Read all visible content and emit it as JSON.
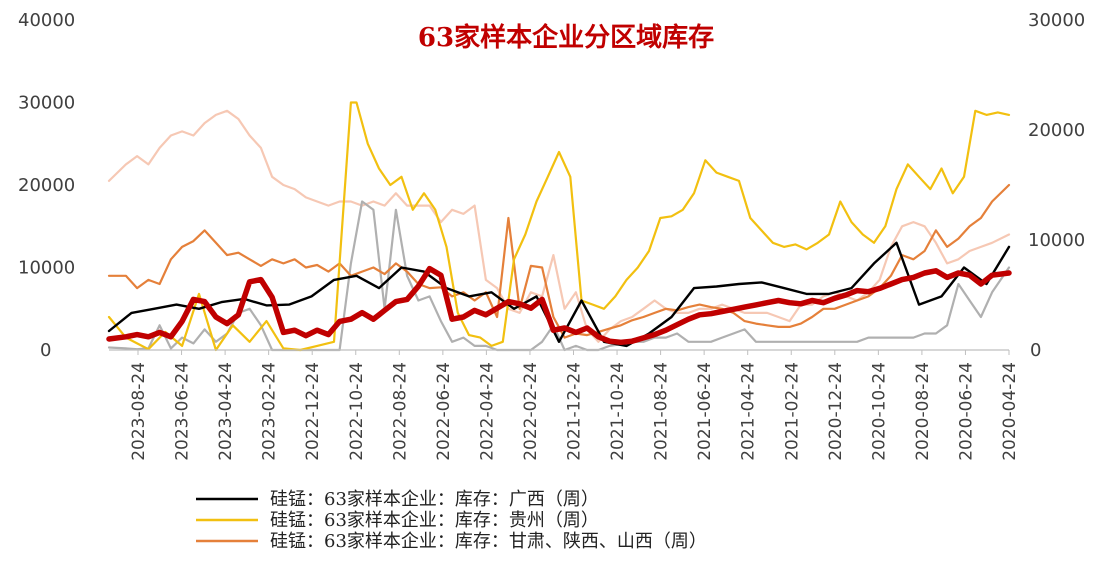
{
  "chart_data": {
    "type": "line",
    "title": "63家样本企业分区域库存",
    "y_left": {
      "ticks": [
        "0",
        "10000",
        "20000",
        "30000",
        "40000"
      ],
      "lim": [
        0,
        40000
      ]
    },
    "y_right": {
      "ticks": [
        "0",
        "10000",
        "20000",
        "30000"
      ],
      "lim": [
        0,
        30000
      ]
    },
    "x_ticks": [
      "2023-08-24",
      "2023-06-24",
      "2023-04-24",
      "2023-02-24",
      "2022-12-24",
      "2022-10-24",
      "2022-08-24",
      "2022-06-24",
      "2022-04-24",
      "2022-02-24",
      "2021-12-24",
      "2021-10-24",
      "2021-08-24",
      "2021-06-24",
      "2021-04-24",
      "2021-02-24",
      "2020-12-24",
      "2020-10-24",
      "2020-08-24",
      "2020-06-24",
      "2020-04-24"
    ],
    "x_order": "descending (left = 2023-08-24, right = 2020-04-24), weekly",
    "grid": false,
    "legend_position": "bottom",
    "series": [
      {
        "name": "硅锰：63家样本企业：库存：广西（周）",
        "color": "#000000",
        "axis": "left",
        "x": [
          0,
          4,
          8,
          12,
          16,
          20,
          24,
          28,
          32,
          36,
          40,
          44,
          48,
          52,
          56,
          60,
          64,
          68,
          72,
          76,
          80,
          84,
          88,
          92,
          96,
          100,
          104,
          108,
          112,
          116,
          120,
          124,
          128,
          132,
          136,
          140,
          144,
          148,
          152,
          156,
          160
        ],
        "values": [
          2300,
          4500,
          5000,
          5500,
          5000,
          5800,
          6200,
          5400,
          5500,
          6500,
          8500,
          9000,
          7500,
          10000,
          9500,
          7500,
          6500,
          7000,
          5000,
          6500,
          1000,
          6000,
          1000,
          500,
          2000,
          4000,
          7500,
          7700,
          8000,
          8200,
          7500,
          6800,
          6800,
          7500,
          10500,
          13000,
          5500,
          6500,
          10000,
          8000,
          12500
        ]
      },
      {
        "name": "硅锰：63家样本企业：库存：贵州（周）",
        "color": "#f2c010",
        "axis": "left",
        "x": [
          0,
          3,
          5,
          7,
          10,
          13,
          16,
          19,
          22,
          25,
          28,
          31,
          34,
          37,
          40,
          43,
          44,
          46,
          48,
          50,
          52,
          54,
          56,
          58,
          60,
          62,
          64,
          66,
          68,
          70,
          72,
          74,
          76,
          78,
          80,
          82,
          84,
          86,
          88,
          90,
          92,
          94,
          96,
          98,
          100,
          102,
          104,
          106,
          108,
          110,
          112,
          114,
          116,
          118,
          120,
          122,
          124,
          126,
          128,
          130,
          132,
          134,
          136,
          138,
          140,
          142,
          144,
          146,
          148,
          150,
          152,
          154,
          156,
          158,
          160
        ],
        "values": [
          4000,
          1500,
          800,
          100,
          2200,
          500,
          6800,
          0,
          3000,
          1000,
          3500,
          200,
          0,
          500,
          1000,
          30000,
          30000,
          25000,
          22000,
          20000,
          21000,
          17000,
          19000,
          17000,
          12500,
          4500,
          1800,
          1500,
          500,
          1000,
          11000,
          14000,
          18000,
          21000,
          24000,
          21000,
          6000,
          5500,
          5000,
          6500,
          8500,
          10000,
          12000,
          16000,
          16200,
          17000,
          19000,
          23000,
          21500,
          21000,
          20500,
          16000,
          14500,
          13000,
          12500,
          12800,
          12200,
          13000,
          14000,
          18000,
          15500,
          14000,
          13000,
          15000,
          19500,
          22500,
          21000,
          19500,
          22000,
          19000,
          21000,
          29000,
          28500,
          28800,
          28500
        ]
      },
      {
        "name": "硅锰：63家样本企业：库存：甘肃、陕西、山西（周）",
        "color": "#e5803a",
        "axis": "left",
        "x": [
          0,
          3,
          5,
          7,
          9,
          11,
          13,
          15,
          17,
          19,
          21,
          23,
          25,
          27,
          29,
          31,
          33,
          35,
          37,
          39,
          41,
          43,
          45,
          47,
          49,
          51,
          53,
          55,
          57,
          59,
          61,
          63,
          65,
          67,
          69,
          71,
          73,
          75,
          77,
          79,
          81,
          83,
          85,
          87,
          89,
          91,
          93,
          95,
          97,
          99,
          101,
          103,
          105,
          107,
          109,
          111,
          113,
          115,
          117,
          119,
          121,
          123,
          125,
          127,
          129,
          131,
          133,
          135,
          137,
          139,
          141,
          143,
          145,
          147,
          149,
          151,
          153,
          155,
          157,
          160
        ],
        "values": [
          9000,
          9000,
          7500,
          8500,
          8000,
          11000,
          12500,
          13200,
          14500,
          13000,
          11500,
          11800,
          11000,
          10200,
          11000,
          10500,
          11000,
          10000,
          10300,
          9500,
          10500,
          9000,
          9500,
          10000,
          9200,
          10500,
          9500,
          8000,
          7500,
          7600,
          6500,
          7000,
          6000,
          7000,
          4000,
          16000,
          5000,
          10200,
          10000,
          4000,
          1500,
          2000,
          1800,
          2200,
          2600,
          3000,
          3600,
          4000,
          4500,
          5000,
          4800,
          5200,
          5500,
          5200,
          5000,
          4500,
          3500,
          3200,
          3000,
          2800,
          2800,
          3200,
          4000,
          5000,
          5000,
          5500,
          6000,
          6500,
          7500,
          9000,
          11500,
          11000,
          12000,
          14500,
          12500,
          13500,
          15000,
          16000,
          18000,
          20000
        ]
      },
      {
        "name": "",
        "color": "#f6c8b4",
        "axis": "left",
        "x": [
          0,
          3,
          5,
          7,
          9,
          11,
          13,
          15,
          17,
          19,
          21,
          23,
          25,
          27,
          29,
          31,
          33,
          35,
          37,
          39,
          41,
          43,
          45,
          47,
          49,
          51,
          53,
          55,
          57,
          59,
          61,
          63,
          65,
          67,
          69,
          71,
          73,
          75,
          77,
          79,
          81,
          83,
          85,
          87,
          89,
          91,
          93,
          95,
          97,
          99,
          101,
          103,
          105,
          107,
          109,
          111,
          113,
          115,
          117,
          119,
          121,
          123,
          125,
          127,
          129,
          131,
          133,
          135,
          137,
          139,
          141,
          143,
          145,
          147,
          149,
          151,
          153,
          155,
          157,
          160
        ],
        "values": [
          20500,
          22500,
          23500,
          22500,
          24500,
          26000,
          26500,
          26000,
          27500,
          28500,
          29000,
          28000,
          26000,
          24500,
          21000,
          20000,
          19500,
          18500,
          18000,
          17500,
          18000,
          18000,
          17500,
          18000,
          17500,
          19000,
          17500,
          17500,
          17500,
          15500,
          17000,
          16500,
          17500,
          8500,
          7500,
          5000,
          4500,
          7000,
          6500,
          11500,
          5000,
          7000,
          2500,
          1000,
          2500,
          3500,
          4000,
          5000,
          6000,
          5000,
          4500,
          4500,
          5000,
          5000,
          5500,
          5000,
          4500,
          4500,
          4500,
          4000,
          3500,
          5500,
          5500,
          6500,
          7000,
          6500,
          6000,
          7000,
          8500,
          12500,
          15000,
          15500,
          15000,
          13000,
          10500,
          11000,
          12000,
          12500,
          13000,
          14000
        ]
      },
      {
        "name": "",
        "color": "#b0b0b0",
        "axis": "left",
        "x": [
          0,
          3,
          5,
          7,
          9,
          11,
          13,
          15,
          17,
          19,
          21,
          23,
          25,
          27,
          29,
          31,
          33,
          35,
          37,
          39,
          41,
          43,
          45,
          47,
          49,
          51,
          53,
          55,
          57,
          59,
          61,
          63,
          65,
          67,
          69,
          71,
          73,
          75,
          77,
          79,
          81,
          83,
          85,
          87,
          89,
          91,
          93,
          95,
          97,
          99,
          101,
          103,
          105,
          107,
          109,
          111,
          113,
          115,
          117,
          119,
          121,
          123,
          125,
          127,
          129,
          131,
          133,
          135,
          137,
          139,
          141,
          143,
          145,
          147,
          149,
          151,
          153,
          155,
          157,
          160
        ],
        "values": [
          300,
          200,
          100,
          200,
          3000,
          200,
          1500,
          800,
          2500,
          1000,
          2000,
          4500,
          5000,
          3000,
          0,
          0,
          0,
          0,
          0,
          0,
          0,
          10500,
          18000,
          17000,
          5000,
          17000,
          9000,
          6000,
          6500,
          3500,
          1000,
          1500,
          500,
          500,
          0,
          0,
          0,
          0,
          1000,
          3000,
          0,
          500,
          0,
          0,
          500,
          700,
          1000,
          1000,
          1500,
          1500,
          2000,
          1000,
          1000,
          1000,
          1500,
          2000,
          2500,
          1000,
          1000,
          1000,
          1000,
          1000,
          1000,
          1000,
          1000,
          1000,
          1000,
          1500,
          1500,
          1500,
          1500,
          1500,
          2000,
          2000,
          3000,
          8000,
          6000,
          4000,
          7000,
          10000
        ]
      },
      {
        "name": "",
        "color": "#c00000",
        "axis": "right",
        "x": [
          0,
          3,
          5,
          7,
          9,
          11,
          13,
          15,
          17,
          19,
          21,
          23,
          25,
          27,
          29,
          31,
          33,
          35,
          37,
          39,
          41,
          43,
          45,
          47,
          49,
          51,
          53,
          55,
          57,
          59,
          61,
          63,
          65,
          67,
          69,
          71,
          73,
          75,
          77,
          79,
          81,
          83,
          85,
          87,
          89,
          91,
          93,
          95,
          97,
          99,
          101,
          103,
          105,
          107,
          109,
          111,
          113,
          115,
          117,
          119,
          121,
          123,
          125,
          127,
          129,
          131,
          133,
          135,
          137,
          139,
          141,
          143,
          145,
          147,
          149,
          151,
          153,
          155,
          157,
          160
        ],
        "values": [
          1000,
          1200,
          1400,
          1200,
          1600,
          1200,
          2600,
          4600,
          4400,
          3000,
          2400,
          3200,
          6200,
          6400,
          4800,
          1600,
          1800,
          1300,
          1800,
          1400,
          2600,
          2800,
          3400,
          2800,
          3600,
          4400,
          4600,
          5800,
          7400,
          6800,
          2800,
          3000,
          3600,
          3200,
          3800,
          4400,
          4200,
          3800,
          4600,
          1800,
          2000,
          1600,
          2000,
          1200,
          800,
          700,
          800,
          1100,
          1400,
          1800,
          2300,
          2800,
          3200,
          3300,
          3500,
          3700,
          3900,
          4100,
          4300,
          4500,
          4300,
          4200,
          4500,
          4300,
          4700,
          5000,
          5400,
          5300,
          5600,
          6000,
          6400,
          6600,
          7000,
          7200,
          6600,
          7000,
          6800,
          6000,
          6800,
          7000
        ]
      }
    ]
  },
  "legend": [
    {
      "label": "硅锰：63家样本企业：库存：广西（周）",
      "color": "#000000"
    },
    {
      "label": "硅锰：63家样本企业：库存：贵州（周）",
      "color": "#f2c010"
    },
    {
      "label": "硅锰：63家样本企业：库存：甘肃、陕西、山西（周）",
      "color": "#e5803a"
    }
  ]
}
